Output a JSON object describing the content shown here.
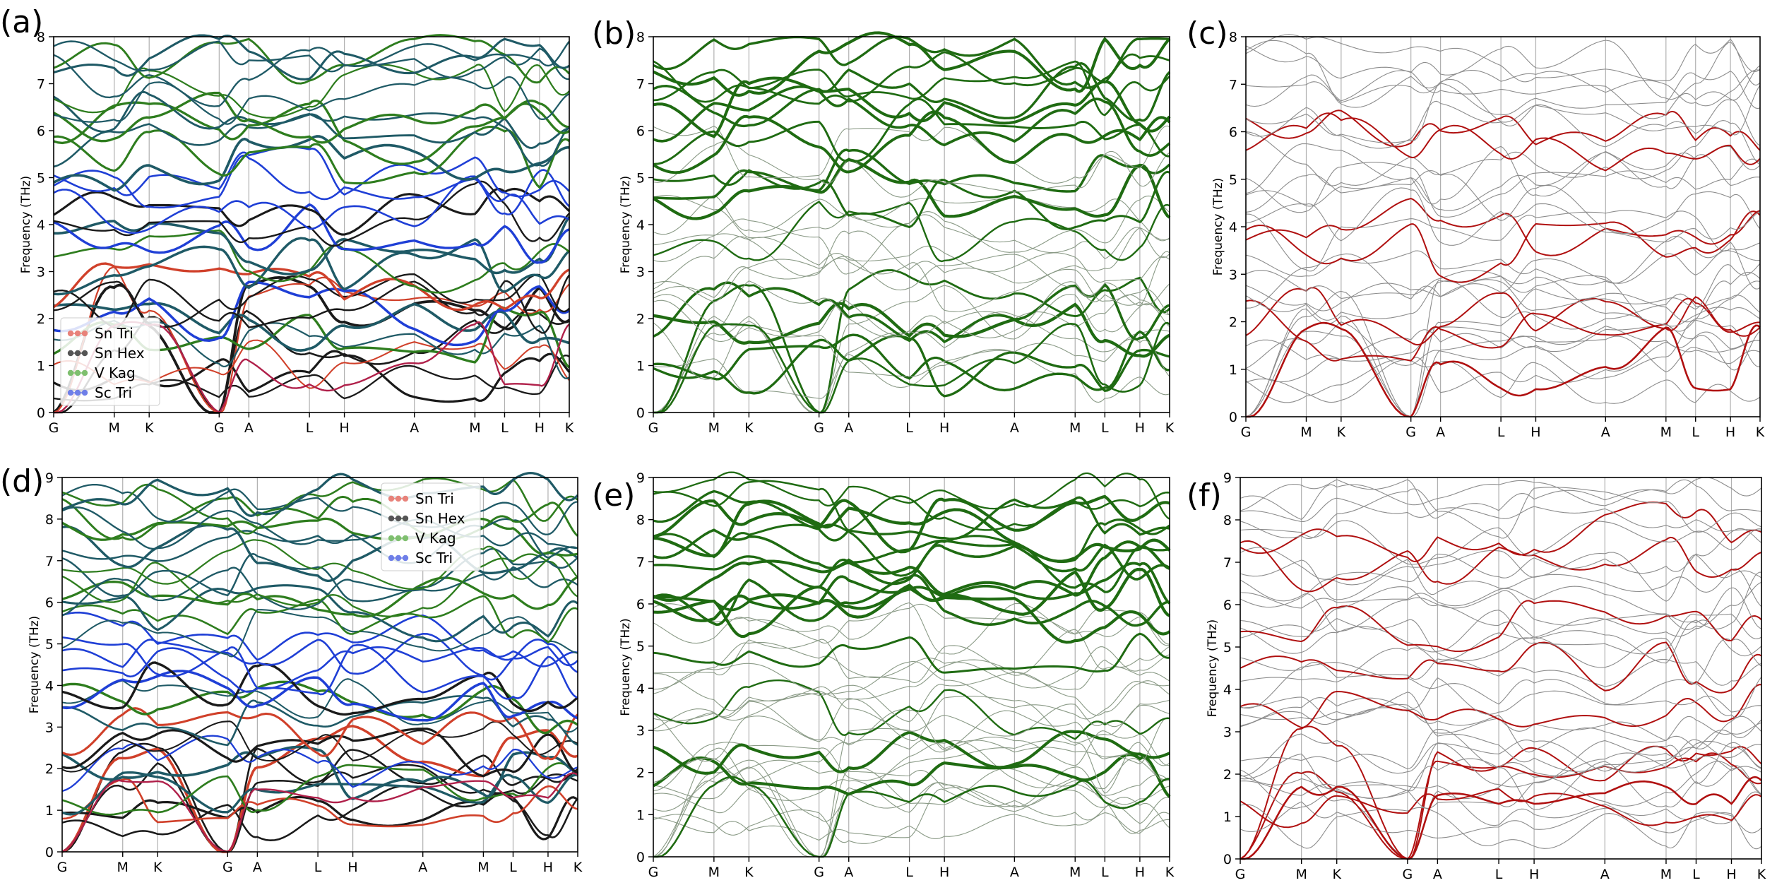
{
  "figure": {
    "colors": {
      "sn_tri": "#d0402a",
      "sn_hex": "#1a1a1a",
      "v_kag": "#2e7d1e",
      "sc_tri": "#1f3fd6",
      "teal": "#1f5a66",
      "green_only": "#1f6b12",
      "red_only": "#b01010",
      "gray": "#8c8c8c",
      "vline": "#b0b0b0",
      "crimson": "#b0204a"
    },
    "legend": [
      {
        "name": "Sn Tri",
        "color": "#e8827a"
      },
      {
        "name": "Sn Hex",
        "color": "#555555"
      },
      {
        "name": "V Kag",
        "color": "#7fbf6f"
      },
      {
        "name": "Sc Tri",
        "color": "#6f7fe8"
      }
    ]
  },
  "chart_data": [
    {
      "panel": "(a)",
      "type": "line",
      "style": "projected-all",
      "ylabel": "Frequency (THz)",
      "ylim": [
        0,
        8
      ],
      "yticks": [
        "0",
        "1",
        "2",
        "3",
        "4",
        "5",
        "6",
        "7",
        "8"
      ],
      "kpath": [
        "G",
        "M",
        "K",
        "G",
        "A",
        "L",
        "H",
        "A",
        "M",
        "L",
        "H",
        "K"
      ],
      "kpos": [
        0,
        0.577,
        0.91,
        1.577,
        1.86,
        2.437,
        2.77,
        3.437,
        4.014,
        4.297,
        4.63,
        4.913
      ],
      "legend": true,
      "legend_position": "lower-left",
      "representative_bands": [
        {
          "name": "acoustic-low",
          "x": [
            0,
            0.577,
            0.91,
            1.577,
            1.86,
            2.437,
            2.77,
            3.437,
            4.014,
            4.297,
            4.63,
            4.913
          ],
          "y": [
            0,
            1.85,
            1.85,
            0,
            1.1,
            0.6,
            0.58,
            1.05,
            1.88,
            0.6,
            0.58,
            1.88
          ]
        },
        {
          "name": "optical-high",
          "x": [
            0,
            0.577,
            0.91,
            1.577,
            1.86,
            2.437,
            2.77,
            3.437,
            4.014,
            4.297,
            4.63,
            4.913
          ],
          "y": [
            7.8,
            7.5,
            7.3,
            7.9,
            7.5,
            7.6,
            7.4,
            7.8,
            7.5,
            7.6,
            7.5,
            7.9
          ]
        }
      ]
    },
    {
      "panel": "(b)",
      "type": "line",
      "style": "projected-v-kag",
      "ylabel": "Frequency (THz)",
      "ylim": [
        0,
        8
      ],
      "yticks": [
        "0",
        "1",
        "2",
        "3",
        "4",
        "5",
        "6",
        "7",
        "8"
      ],
      "kpath": [
        "G",
        "M",
        "K",
        "G",
        "A",
        "L",
        "H",
        "A",
        "M",
        "L",
        "H",
        "K"
      ],
      "kpos": [
        0,
        0.577,
        0.91,
        1.577,
        1.86,
        2.437,
        2.77,
        3.437,
        4.014,
        4.297,
        4.63,
        4.913
      ],
      "legend": false
    },
    {
      "panel": "(c)",
      "type": "line",
      "style": "projected-sn-tri",
      "ylabel": "Frequency (THz)",
      "ylim": [
        0,
        8
      ],
      "yticks": [
        "0",
        "1",
        "2",
        "3",
        "4",
        "5",
        "6",
        "7",
        "8"
      ],
      "kpath": [
        "G",
        "M",
        "K",
        "G",
        "A",
        "L",
        "H",
        "A",
        "M",
        "L",
        "H",
        "K"
      ],
      "kpos": [
        0,
        0.577,
        0.91,
        1.577,
        1.86,
        2.437,
        2.77,
        3.437,
        4.014,
        4.297,
        4.63,
        4.913
      ],
      "legend": false
    },
    {
      "panel": "(d)",
      "type": "line",
      "style": "projected-all",
      "ylabel": "Frequency (THz)",
      "ylim": [
        0,
        9
      ],
      "yticks": [
        "0",
        "1",
        "2",
        "3",
        "4",
        "5",
        "6",
        "7",
        "8",
        "9"
      ],
      "kpath": [
        "G",
        "M",
        "K",
        "G",
        "A",
        "L",
        "H",
        "A",
        "M",
        "L",
        "H",
        "K"
      ],
      "kpos": [
        0,
        0.577,
        0.91,
        1.577,
        1.86,
        2.437,
        2.77,
        3.437,
        4.014,
        4.297,
        4.63,
        4.913
      ],
      "legend": true,
      "legend_position": "upper-right",
      "representative_bands": [
        {
          "name": "acoustic-low",
          "x": [
            0,
            0.577,
            0.91,
            1.577,
            1.86,
            2.437,
            2.77,
            3.437,
            4.014,
            4.297,
            4.63,
            4.913
          ],
          "y": [
            0,
            1.7,
            1.7,
            0,
            1.5,
            1.3,
            1.3,
            1.55,
            1.7,
            1.3,
            1.3,
            1.85
          ]
        },
        {
          "name": "optical-high",
          "x": [
            0,
            0.577,
            0.91,
            1.577,
            1.86,
            2.437,
            2.77,
            3.437,
            4.014,
            4.297,
            4.63,
            4.913
          ],
          "y": [
            8.2,
            7.7,
            7.3,
            8.2,
            7.9,
            7.5,
            7.5,
            8.0,
            7.6,
            7.5,
            7.4,
            7.3
          ]
        }
      ]
    },
    {
      "panel": "(e)",
      "type": "line",
      "style": "projected-v-kag",
      "ylabel": "Frequency (THz)",
      "ylim": [
        0,
        9
      ],
      "yticks": [
        "0",
        "1",
        "2",
        "3",
        "4",
        "5",
        "6",
        "7",
        "8",
        "9"
      ],
      "kpath": [
        "G",
        "M",
        "K",
        "G",
        "A",
        "L",
        "H",
        "A",
        "M",
        "L",
        "H",
        "K"
      ],
      "kpos": [
        0,
        0.577,
        0.91,
        1.577,
        1.86,
        2.437,
        2.77,
        3.437,
        4.014,
        4.297,
        4.63,
        4.913
      ],
      "legend": false
    },
    {
      "panel": "(f)",
      "type": "line",
      "style": "projected-sn-tri",
      "ylabel": "Frequency (THz)",
      "ylim": [
        0,
        9
      ],
      "yticks": [
        "0",
        "1",
        "2",
        "3",
        "4",
        "5",
        "6",
        "7",
        "8",
        "9"
      ],
      "kpath": [
        "G",
        "M",
        "K",
        "G",
        "A",
        "L",
        "H",
        "A",
        "M",
        "L",
        "H",
        "K"
      ],
      "kpos": [
        0,
        0.577,
        0.91,
        1.577,
        1.86,
        2.437,
        2.77,
        3.437,
        4.014,
        4.297,
        4.63,
        4.913
      ],
      "legend": false
    }
  ]
}
